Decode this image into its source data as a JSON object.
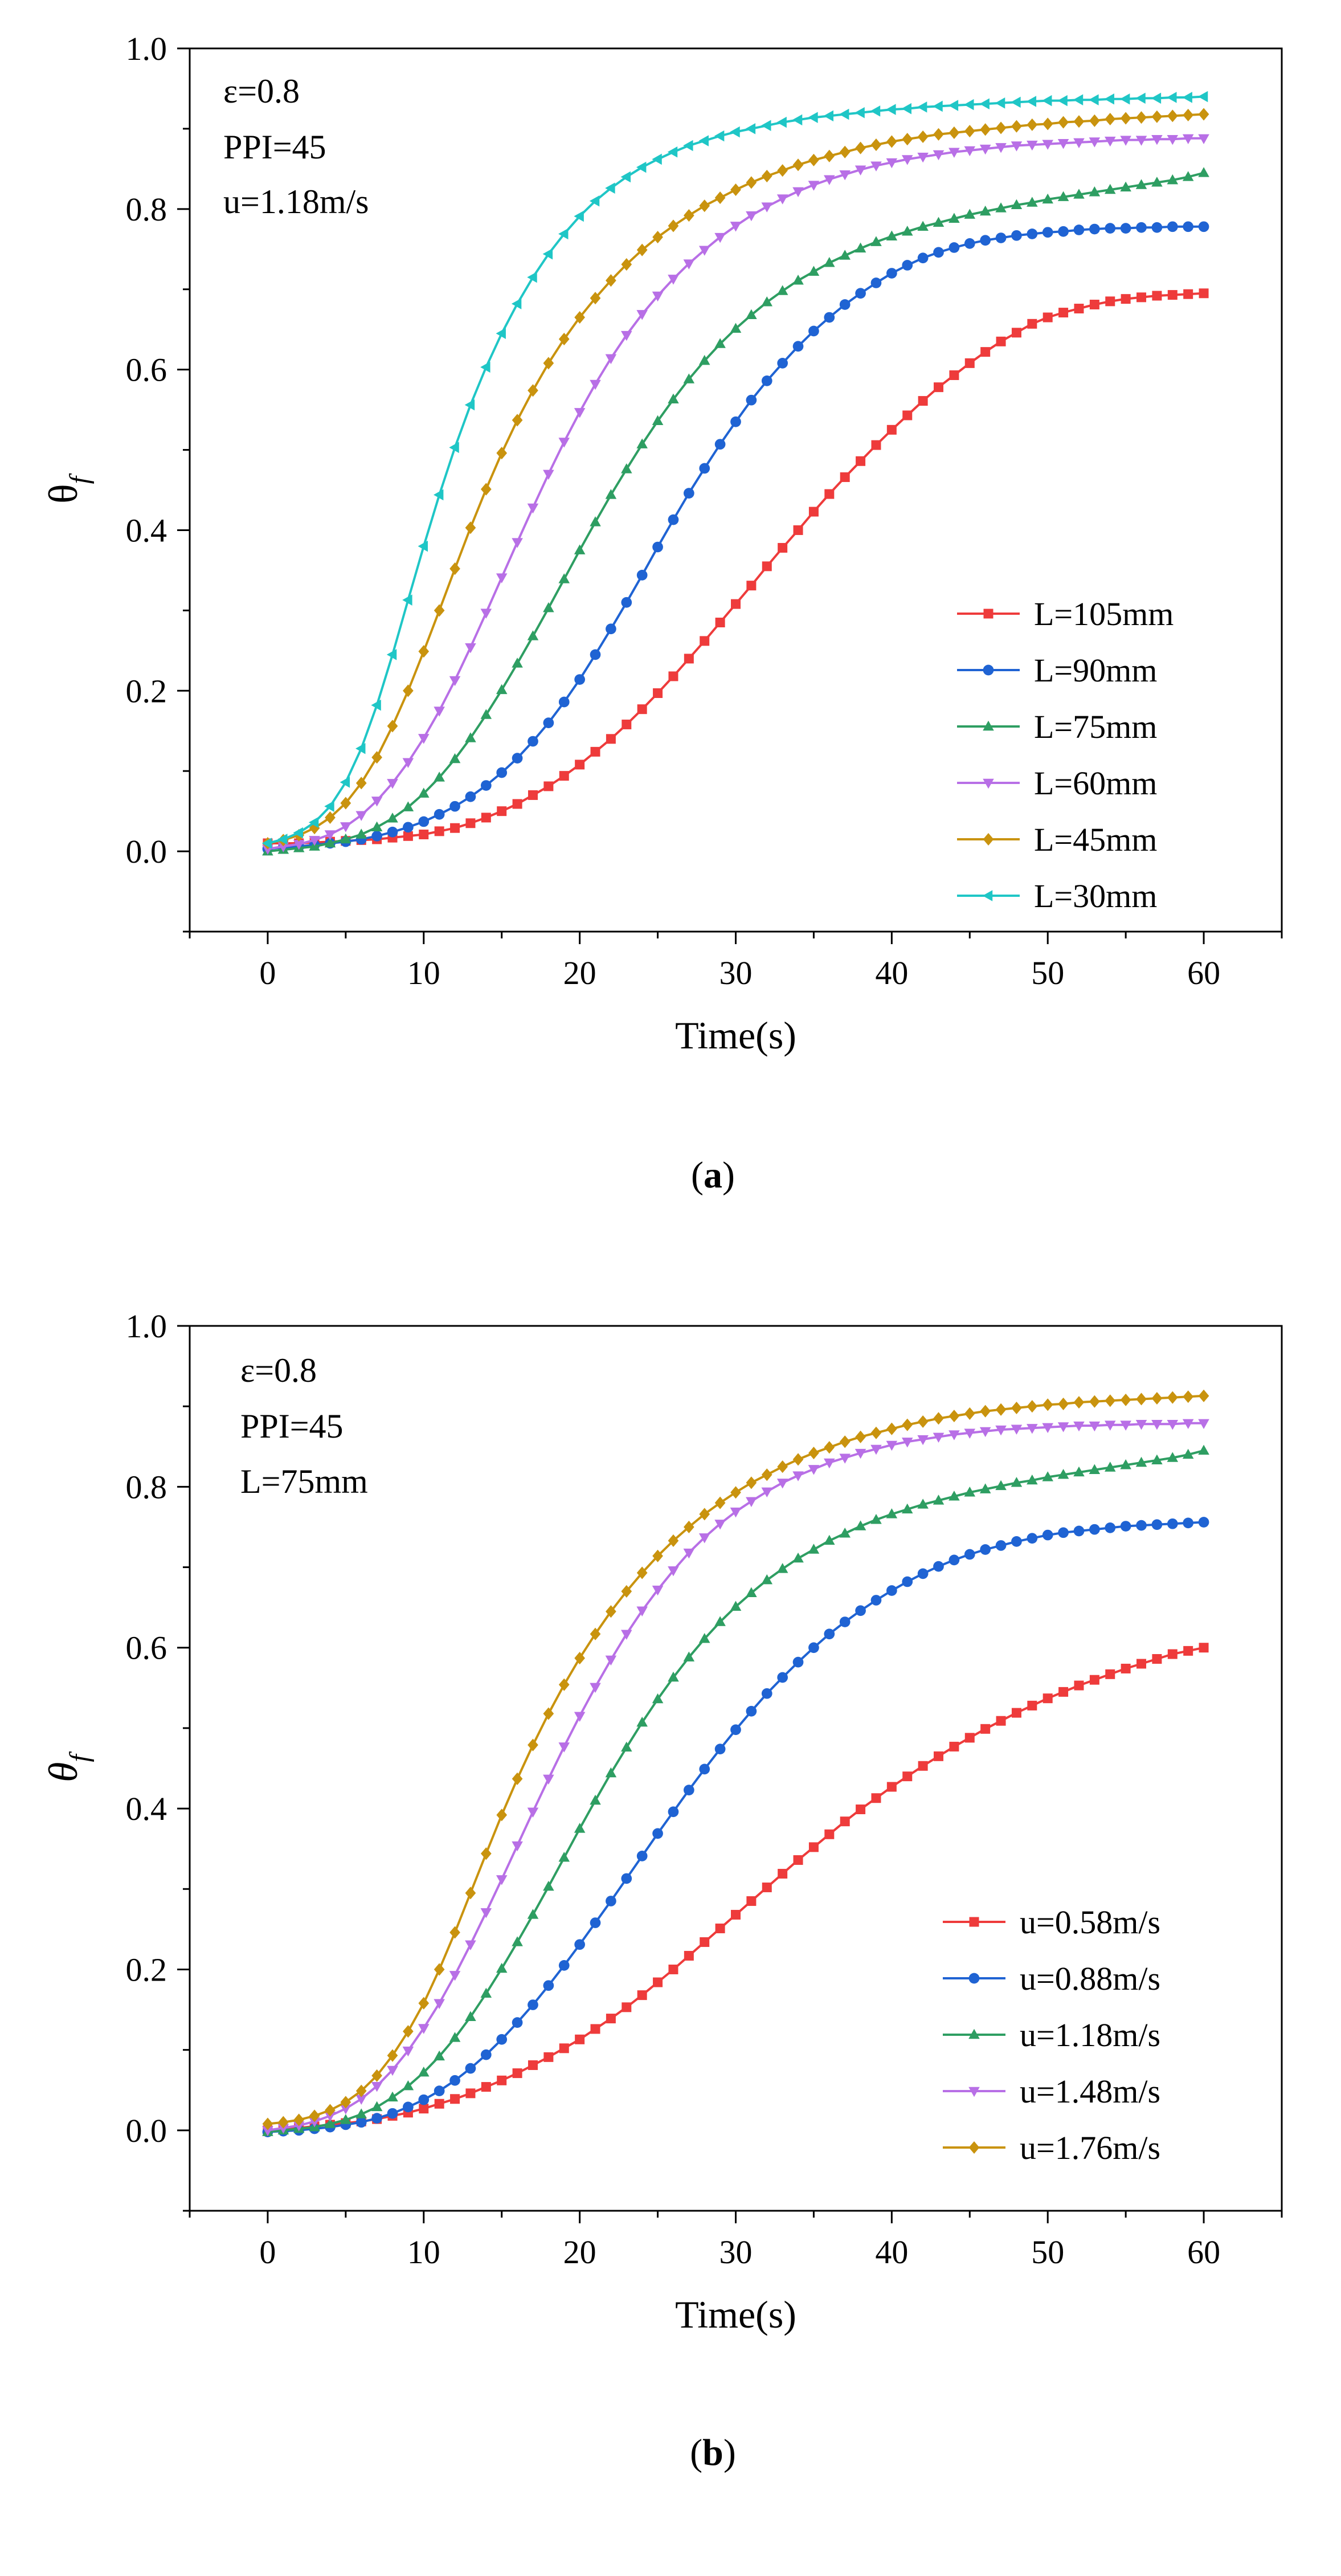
{
  "chart_data": [
    {
      "type": "line",
      "panel_label": "a",
      "xlabel": "Time(s)",
      "ylabel": "θ",
      "ylabel_sub": "f",
      "xlim": [
        -5,
        65
      ],
      "ylim": [
        -0.1,
        1.0
      ],
      "xticks": [
        "0",
        "10",
        "20",
        "30",
        "40",
        "50",
        "60"
      ],
      "yticks": [
        "0.0",
        "0.2",
        "0.4",
        "0.6",
        "0.8",
        "1.0"
      ],
      "annotations": [
        "ε=0.8",
        "PPI=45",
        "u=1.18m/s"
      ],
      "legend_position": "bottom-right",
      "x": [
        0,
        1,
        2,
        3,
        4,
        5,
        6,
        7,
        8,
        9,
        10,
        11,
        12,
        13,
        14,
        15,
        16,
        17,
        18,
        19,
        20,
        21,
        22,
        23,
        24,
        25,
        26,
        27,
        28,
        29,
        30,
        31,
        32,
        33,
        34,
        35,
        36,
        37,
        38,
        39,
        40,
        41,
        42,
        43,
        44,
        45,
        46,
        47,
        48,
        49,
        50,
        51,
        52,
        53,
        54,
        55,
        56,
        57,
        58,
        59,
        60
      ],
      "series": [
        {
          "name": "L=105mm",
          "color": "#ee3b3b",
          "marker": "square",
          "values": [
            0.01,
            0.01,
            0.01,
            0.011,
            0.012,
            0.013,
            0.014,
            0.015,
            0.017,
            0.019,
            0.021,
            0.025,
            0.029,
            0.035,
            0.042,
            0.05,
            0.059,
            0.07,
            0.081,
            0.094,
            0.108,
            0.124,
            0.14,
            0.158,
            0.177,
            0.197,
            0.218,
            0.24,
            0.262,
            0.285,
            0.308,
            0.331,
            0.355,
            0.378,
            0.4,
            0.423,
            0.445,
            0.466,
            0.486,
            0.506,
            0.525,
            0.543,
            0.561,
            0.578,
            0.593,
            0.608,
            0.622,
            0.635,
            0.646,
            0.657,
            0.665,
            0.671,
            0.676,
            0.681,
            0.685,
            0.688,
            0.69,
            0.692,
            0.693,
            0.694,
            0.695
          ]
        },
        {
          "name": "L=90mm",
          "color": "#1f63d3",
          "marker": "circle",
          "values": [
            0.003,
            0.005,
            0.006,
            0.008,
            0.01,
            0.012,
            0.015,
            0.019,
            0.024,
            0.03,
            0.037,
            0.046,
            0.056,
            0.068,
            0.082,
            0.098,
            0.116,
            0.137,
            0.16,
            0.186,
            0.214,
            0.245,
            0.277,
            0.31,
            0.344,
            0.379,
            0.413,
            0.446,
            0.477,
            0.507,
            0.535,
            0.562,
            0.586,
            0.608,
            0.629,
            0.648,
            0.665,
            0.681,
            0.695,
            0.708,
            0.72,
            0.73,
            0.739,
            0.746,
            0.752,
            0.757,
            0.761,
            0.764,
            0.767,
            0.769,
            0.771,
            0.772,
            0.774,
            0.775,
            0.776,
            0.776,
            0.777,
            0.777,
            0.778,
            0.778,
            0.778
          ]
        },
        {
          "name": "L=75mm",
          "color": "#2e9e62",
          "marker": "triangle-up",
          "values": [
            0.0,
            0.002,
            0.004,
            0.006,
            0.01,
            0.015,
            0.021,
            0.03,
            0.041,
            0.055,
            0.072,
            0.092,
            0.115,
            0.141,
            0.17,
            0.201,
            0.234,
            0.268,
            0.303,
            0.339,
            0.375,
            0.41,
            0.444,
            0.476,
            0.507,
            0.536,
            0.563,
            0.588,
            0.611,
            0.632,
            0.651,
            0.668,
            0.684,
            0.698,
            0.711,
            0.722,
            0.733,
            0.742,
            0.751,
            0.759,
            0.766,
            0.772,
            0.778,
            0.783,
            0.788,
            0.793,
            0.797,
            0.801,
            0.805,
            0.808,
            0.812,
            0.815,
            0.818,
            0.821,
            0.824,
            0.827,
            0.83,
            0.833,
            0.836,
            0.84,
            0.845
          ]
        },
        {
          "name": "L=60mm",
          "color": "#b86fe6",
          "marker": "triangle-down",
          "values": [
            0.003,
            0.006,
            0.009,
            0.014,
            0.021,
            0.031,
            0.045,
            0.063,
            0.085,
            0.111,
            0.141,
            0.175,
            0.213,
            0.254,
            0.297,
            0.341,
            0.385,
            0.428,
            0.47,
            0.51,
            0.547,
            0.582,
            0.614,
            0.643,
            0.669,
            0.692,
            0.713,
            0.732,
            0.749,
            0.765,
            0.779,
            0.792,
            0.803,
            0.813,
            0.822,
            0.83,
            0.837,
            0.843,
            0.849,
            0.854,
            0.858,
            0.862,
            0.865,
            0.868,
            0.871,
            0.873,
            0.875,
            0.877,
            0.879,
            0.88,
            0.881,
            0.882,
            0.883,
            0.884,
            0.885,
            0.886,
            0.886,
            0.887,
            0.887,
            0.888,
            0.888
          ]
        },
        {
          "name": "L=45mm",
          "color": "#c9930e",
          "marker": "diamond",
          "values": [
            0.01,
            0.014,
            0.02,
            0.029,
            0.042,
            0.06,
            0.085,
            0.117,
            0.156,
            0.2,
            0.249,
            0.3,
            0.352,
            0.403,
            0.451,
            0.496,
            0.537,
            0.574,
            0.608,
            0.638,
            0.665,
            0.689,
            0.711,
            0.731,
            0.749,
            0.765,
            0.779,
            0.792,
            0.804,
            0.814,
            0.824,
            0.833,
            0.841,
            0.848,
            0.855,
            0.861,
            0.866,
            0.871,
            0.876,
            0.88,
            0.884,
            0.887,
            0.89,
            0.893,
            0.895,
            0.897,
            0.899,
            0.901,
            0.903,
            0.905,
            0.906,
            0.908,
            0.909,
            0.91,
            0.912,
            0.913,
            0.914,
            0.915,
            0.916,
            0.917,
            0.918
          ]
        },
        {
          "name": "L=30mm",
          "color": "#1fc6c6",
          "marker": "triangle-left",
          "values": [
            0.01,
            0.015,
            0.023,
            0.036,
            0.056,
            0.086,
            0.128,
            0.182,
            0.245,
            0.313,
            0.38,
            0.444,
            0.503,
            0.556,
            0.603,
            0.645,
            0.682,
            0.715,
            0.744,
            0.769,
            0.791,
            0.81,
            0.826,
            0.84,
            0.852,
            0.862,
            0.871,
            0.879,
            0.885,
            0.891,
            0.896,
            0.9,
            0.904,
            0.908,
            0.911,
            0.914,
            0.916,
            0.918,
            0.92,
            0.922,
            0.924,
            0.925,
            0.927,
            0.928,
            0.929,
            0.93,
            0.931,
            0.932,
            0.933,
            0.934,
            0.935,
            0.935,
            0.936,
            0.936,
            0.937,
            0.937,
            0.938,
            0.938,
            0.939,
            0.939,
            0.94
          ]
        }
      ]
    },
    {
      "type": "line",
      "panel_label": "b",
      "xlabel": "Time(s)",
      "ylabel": "θ",
      "ylabel_sub": "f",
      "xlim": [
        -5,
        65
      ],
      "ylim": [
        -0.1,
        1.0
      ],
      "xticks": [
        "0",
        "10",
        "20",
        "30",
        "40",
        "50",
        "60"
      ],
      "yticks": [
        "0.0",
        "0.2",
        "0.4",
        "0.6",
        "0.8",
        "1.0"
      ],
      "annotations": [
        "ε=0.8",
        "PPI=45",
        "L=75mm"
      ],
      "legend_position": "bottom-right",
      "x": [
        0,
        1,
        2,
        3,
        4,
        5,
        6,
        7,
        8,
        9,
        10,
        11,
        12,
        13,
        14,
        15,
        16,
        17,
        18,
        19,
        20,
        21,
        22,
        23,
        24,
        25,
        26,
        27,
        28,
        29,
        30,
        31,
        32,
        33,
        34,
        35,
        36,
        37,
        38,
        39,
        40,
        41,
        42,
        43,
        44,
        45,
        46,
        47,
        48,
        49,
        50,
        51,
        52,
        53,
        54,
        55,
        56,
        57,
        58,
        59,
        60
      ],
      "series": [
        {
          "name": "u=0.58m/s",
          "color": "#ee3b3b",
          "marker": "square",
          "values": [
            0.0,
            0.002,
            0.003,
            0.005,
            0.007,
            0.009,
            0.011,
            0.014,
            0.018,
            0.022,
            0.027,
            0.033,
            0.039,
            0.046,
            0.054,
            0.062,
            0.071,
            0.081,
            0.091,
            0.102,
            0.113,
            0.126,
            0.139,
            0.153,
            0.168,
            0.184,
            0.2,
            0.217,
            0.234,
            0.251,
            0.268,
            0.285,
            0.302,
            0.319,
            0.336,
            0.352,
            0.368,
            0.384,
            0.399,
            0.413,
            0.427,
            0.44,
            0.453,
            0.465,
            0.477,
            0.488,
            0.499,
            0.509,
            0.519,
            0.528,
            0.537,
            0.545,
            0.553,
            0.56,
            0.567,
            0.574,
            0.58,
            0.586,
            0.592,
            0.596,
            0.6
          ]
        },
        {
          "name": "u=0.88m/s",
          "color": "#1f63d3",
          "marker": "circle",
          "values": [
            -0.002,
            -0.001,
            0.0,
            0.002,
            0.004,
            0.007,
            0.01,
            0.015,
            0.021,
            0.029,
            0.038,
            0.049,
            0.062,
            0.077,
            0.094,
            0.113,
            0.134,
            0.156,
            0.18,
            0.205,
            0.231,
            0.258,
            0.285,
            0.313,
            0.341,
            0.369,
            0.396,
            0.423,
            0.449,
            0.474,
            0.498,
            0.521,
            0.543,
            0.563,
            0.582,
            0.6,
            0.617,
            0.632,
            0.646,
            0.659,
            0.671,
            0.682,
            0.692,
            0.701,
            0.709,
            0.716,
            0.722,
            0.727,
            0.732,
            0.736,
            0.74,
            0.743,
            0.745,
            0.747,
            0.749,
            0.751,
            0.752,
            0.753,
            0.754,
            0.755,
            0.756
          ]
        },
        {
          "name": "u=1.18m/s",
          "color": "#2e9e62",
          "marker": "triangle-up",
          "values": [
            -0.002,
            0.0,
            0.002,
            0.004,
            0.008,
            0.013,
            0.02,
            0.029,
            0.041,
            0.055,
            0.072,
            0.092,
            0.115,
            0.141,
            0.17,
            0.201,
            0.234,
            0.268,
            0.303,
            0.339,
            0.375,
            0.41,
            0.444,
            0.476,
            0.507,
            0.536,
            0.563,
            0.588,
            0.611,
            0.632,
            0.651,
            0.668,
            0.684,
            0.698,
            0.711,
            0.722,
            0.733,
            0.742,
            0.751,
            0.759,
            0.766,
            0.772,
            0.778,
            0.783,
            0.788,
            0.793,
            0.797,
            0.801,
            0.805,
            0.808,
            0.812,
            0.815,
            0.818,
            0.821,
            0.824,
            0.827,
            0.83,
            0.833,
            0.836,
            0.84,
            0.845
          ]
        },
        {
          "name": "u=1.48m/s",
          "color": "#b86fe6",
          "marker": "triangle-down",
          "values": [
            0.0,
            0.003,
            0.006,
            0.011,
            0.018,
            0.027,
            0.039,
            0.055,
            0.075,
            0.099,
            0.127,
            0.158,
            0.193,
            0.231,
            0.271,
            0.312,
            0.354,
            0.396,
            0.437,
            0.477,
            0.515,
            0.551,
            0.585,
            0.617,
            0.646,
            0.672,
            0.696,
            0.718,
            0.737,
            0.754,
            0.769,
            0.782,
            0.794,
            0.805,
            0.814,
            0.822,
            0.83,
            0.836,
            0.842,
            0.847,
            0.852,
            0.856,
            0.859,
            0.862,
            0.865,
            0.867,
            0.869,
            0.871,
            0.872,
            0.873,
            0.874,
            0.875,
            0.876,
            0.876,
            0.877,
            0.877,
            0.878,
            0.878,
            0.878,
            0.879,
            0.879
          ]
        },
        {
          "name": "u=1.76m/s",
          "color": "#c9930e",
          "marker": "diamond",
          "values": [
            0.008,
            0.01,
            0.013,
            0.018,
            0.025,
            0.035,
            0.049,
            0.068,
            0.093,
            0.123,
            0.158,
            0.2,
            0.246,
            0.295,
            0.344,
            0.392,
            0.437,
            0.479,
            0.518,
            0.554,
            0.587,
            0.617,
            0.645,
            0.67,
            0.693,
            0.714,
            0.733,
            0.75,
            0.766,
            0.78,
            0.793,
            0.805,
            0.815,
            0.825,
            0.834,
            0.842,
            0.849,
            0.856,
            0.862,
            0.867,
            0.872,
            0.877,
            0.881,
            0.885,
            0.888,
            0.891,
            0.894,
            0.896,
            0.898,
            0.9,
            0.902,
            0.903,
            0.905,
            0.906,
            0.907,
            0.908,
            0.909,
            0.91,
            0.911,
            0.912,
            0.913
          ]
        }
      ]
    }
  ]
}
